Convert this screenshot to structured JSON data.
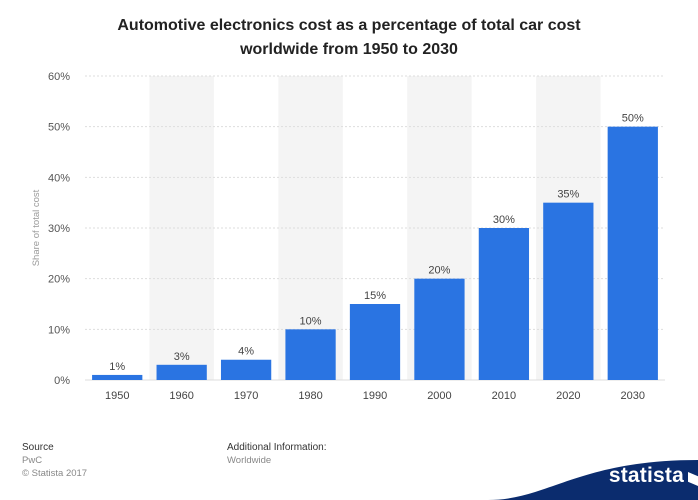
{
  "chart_data": {
    "type": "bar",
    "title_line1": "Automotive electronics cost as a percentage of total car cost",
    "title_line2": "worldwide from 1950 to 2030",
    "ylabel": "Share of total cost",
    "categories": [
      "1950",
      "1960",
      "1970",
      "1980",
      "1990",
      "2000",
      "2010",
      "2020",
      "2030"
    ],
    "values": [
      1,
      3,
      4,
      10,
      15,
      20,
      30,
      35,
      50
    ],
    "value_labels": [
      "1%",
      "3%",
      "4%",
      "10%",
      "15%",
      "20%",
      "30%",
      "35%",
      "50%"
    ],
    "ylim": [
      0,
      60
    ],
    "yticks": [
      0,
      10,
      20,
      30,
      40,
      50,
      60
    ],
    "ytick_labels": [
      "0%",
      "10%",
      "20%",
      "30%",
      "40%",
      "50%",
      "60%"
    ],
    "grid": true,
    "colors": {
      "bar": "#2a74e2",
      "band": "#f4f4f4",
      "grid": "#dddddd"
    }
  },
  "footer": {
    "source_label": "Source",
    "source_name": "PwC",
    "copyright": "© Statista 2017",
    "additional_label": "Additional Information:",
    "additional_value": "Worldwide"
  },
  "brand": {
    "name": "statista",
    "color": "#0b2c6e"
  }
}
